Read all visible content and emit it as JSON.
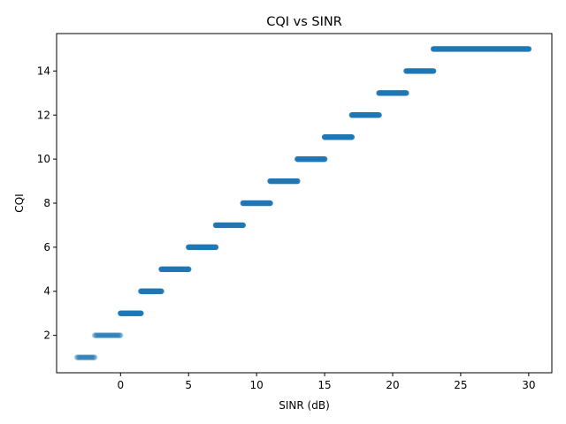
{
  "chart_data": {
    "type": "scatter",
    "title": "CQI vs SINR",
    "xlabel": "SINR (dB)",
    "ylabel": "CQI",
    "xlim": [
      -4.7,
      31.7
    ],
    "ylim": [
      0.3,
      15.7
    ],
    "xticks": [
      0,
      5,
      10,
      15,
      20,
      25,
      30
    ],
    "yticks": [
      2,
      4,
      6,
      8,
      10,
      12,
      14
    ],
    "grid": false,
    "marker_color": "#1f77b4",
    "marker_alpha": 0.35,
    "series": [
      {
        "segments": [
          {
            "cqi": 1,
            "x_min": -3.2,
            "x_max": -1.9
          },
          {
            "cqi": 2,
            "x_min": -1.9,
            "x_max": 0.0
          },
          {
            "cqi": 3,
            "x_min": 0.0,
            "x_max": 1.5
          },
          {
            "cqi": 4,
            "x_min": 1.5,
            "x_max": 3.0
          },
          {
            "cqi": 5,
            "x_min": 3.0,
            "x_max": 5.0
          },
          {
            "cqi": 6,
            "x_min": 5.0,
            "x_max": 7.0
          },
          {
            "cqi": 7,
            "x_min": 7.0,
            "x_max": 9.0
          },
          {
            "cqi": 8,
            "x_min": 9.0,
            "x_max": 11.0
          },
          {
            "cqi": 9,
            "x_min": 11.0,
            "x_max": 13.0
          },
          {
            "cqi": 10,
            "x_min": 13.0,
            "x_max": 15.0
          },
          {
            "cqi": 11,
            "x_min": 15.0,
            "x_max": 17.0
          },
          {
            "cqi": 12,
            "x_min": 17.0,
            "x_max": 19.0
          },
          {
            "cqi": 13,
            "x_min": 19.0,
            "x_max": 21.0
          },
          {
            "cqi": 14,
            "x_min": 21.0,
            "x_max": 23.0
          },
          {
            "cqi": 15,
            "x_min": 23.0,
            "x_max": 30.0
          }
        ]
      }
    ]
  }
}
